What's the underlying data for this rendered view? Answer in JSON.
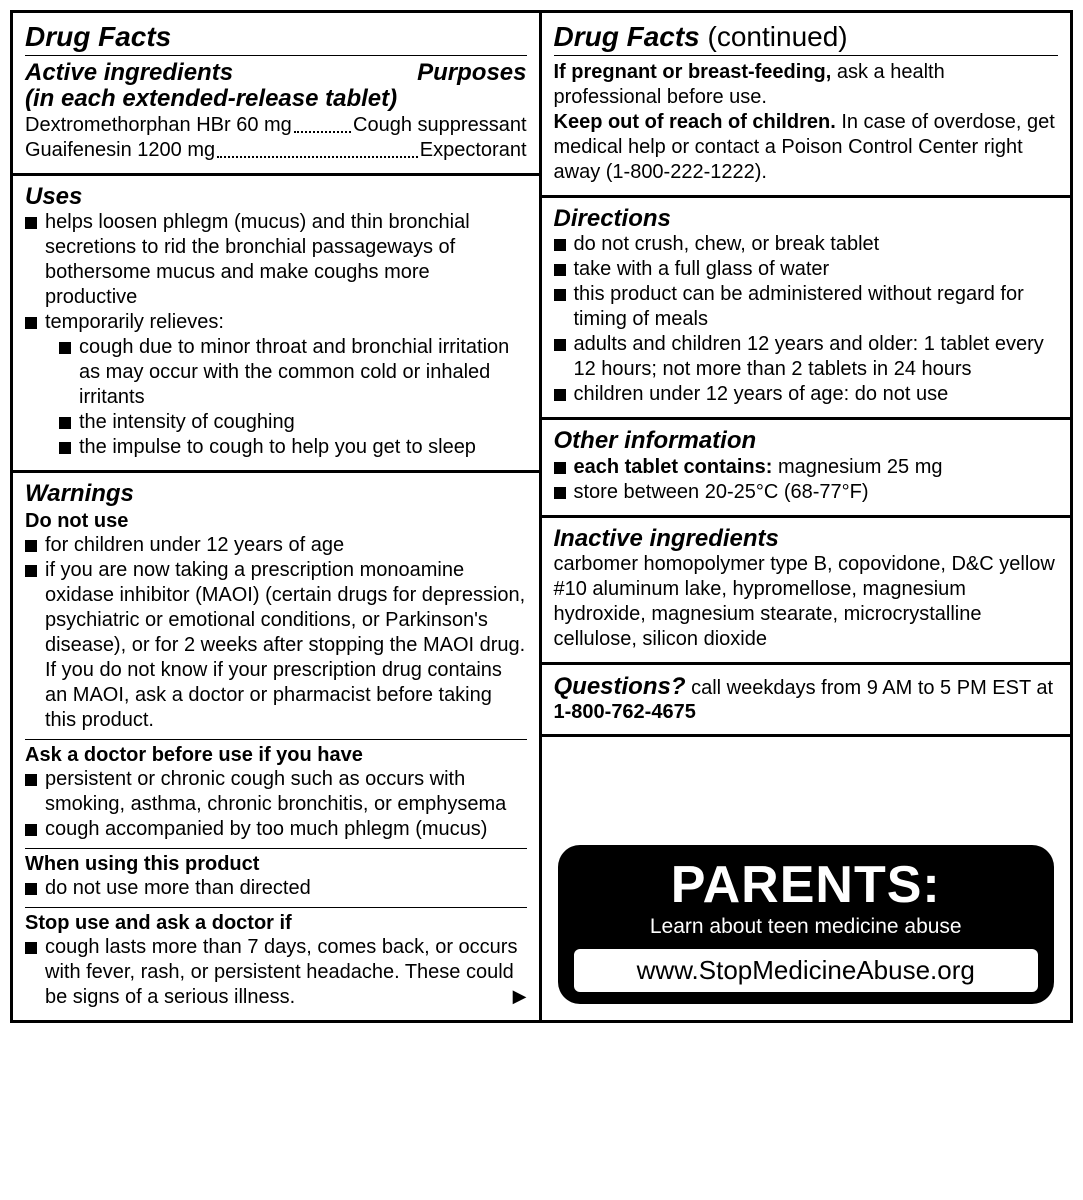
{
  "left": {
    "title": "Drug Facts",
    "active": {
      "heading_left": "Active ingredients",
      "heading_right": "Purposes",
      "heading_sub": "(in each extended-release tablet)",
      "rows": [
        {
          "name": "Dextromethorphan HBr 60 mg",
          "purpose": "Cough suppressant"
        },
        {
          "name": "Guaifenesin 1200 mg",
          "purpose": "Expectorant"
        }
      ]
    },
    "uses": {
      "heading": "Uses",
      "items": [
        "helps loosen phlegm (mucus) and thin bronchial secretions to rid the bronchial passageways of bothersome mucus and make coughs more productive",
        "temporarily relieves:"
      ],
      "subitems": [
        "cough due to minor throat and bronchial irritation as may occur with the common cold or inhaled irritants",
        "the intensity of coughing",
        "the impulse to cough to help you get to sleep"
      ]
    },
    "warnings": {
      "heading": "Warnings",
      "donot_head": "Do not use",
      "donot": [
        "for children under 12 years of age",
        "if you are now taking a prescription monoamine oxidase inhibitor (MAOI) (certain drugs for depression, psychiatric or emotional conditions, or Parkinson's disease), or for 2 weeks after stopping the MAOI drug. If you do not know if your prescription drug contains an MAOI, ask a doctor or pharmacist before taking this product."
      ],
      "ask_head": "Ask a doctor before use if you have",
      "ask": [
        "persistent or chronic cough such as occurs with smoking, asthma, chronic bronchitis, or emphysema",
        "cough accompanied by too much phlegm (mucus)"
      ],
      "when_head": "When using this product",
      "when": [
        "do not use more than directed"
      ],
      "stop_head": "Stop use and ask a doctor if",
      "stop": [
        "cough lasts more than 7 days, comes back, or occurs with fever, rash, or persistent headache. These could be signs of a serious illness."
      ]
    }
  },
  "right": {
    "title": "Drug Facts",
    "title_cont": " (continued)",
    "preg_bold": "If pregnant or breast-feeding,",
    "preg_rest": " ask a health professional before use.",
    "keep_bold": "Keep out of reach of children.",
    "keep_rest": " In case of overdose, get medical help or contact a Poison Control Center right away (1-800-222-1222).",
    "directions": {
      "heading": "Directions",
      "items": [
        "do not crush, chew, or break tablet",
        "take with a full glass of water",
        "this product can be administered without regard for timing of meals",
        "adults and children 12 years and older: 1 tablet every 12 hours; not more than 2 tablets in 24 hours",
        "children under 12 years of age: do not use"
      ]
    },
    "other": {
      "heading": "Other information",
      "item1_bold": "each tablet contains:",
      "item1_rest": " magnesium 25 mg",
      "item2": "store between 20-25°C (68-77°F)"
    },
    "inactive": {
      "heading": "Inactive ingredients",
      "text": "carbomer homopolymer type B, copovidone, D&C yellow #10 aluminum lake, hypromellose, magnesium hydroxide, magnesium stearate, microcrystalline cellulose, silicon dioxide"
    },
    "questions": {
      "q": "Questions?",
      "text1": "  call weekdays from 9 AM to 5 PM EST at ",
      "phone": "1-800-762-4675"
    },
    "parents": {
      "title": "PARENTS:",
      "sub": "Learn about teen medicine abuse",
      "url": "www.StopMedicineAbuse.org"
    }
  }
}
